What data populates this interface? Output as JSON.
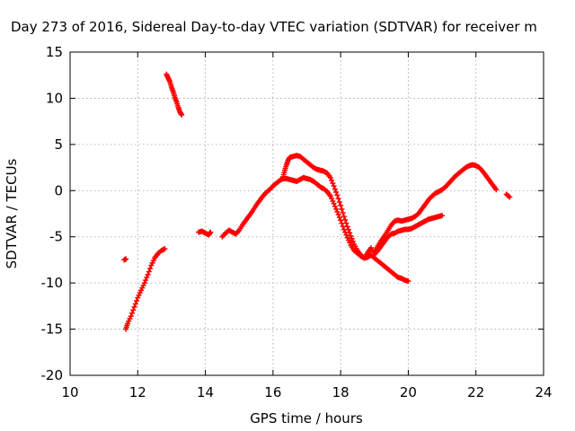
{
  "chart_data": {
    "type": "scatter",
    "title": "Day 273 of 2016, Sidereal Day-to-day VTEC variation (SDTVAR) for receiver m",
    "xlabel": "GPS time / hours",
    "ylabel": "SDTVAR / TECUs",
    "xlim": [
      10,
      24
    ],
    "ylim": [
      -20,
      15
    ],
    "xticks": [
      10,
      12,
      14,
      16,
      18,
      20,
      22,
      24
    ],
    "yticks": [
      -20,
      -15,
      -10,
      -5,
      0,
      5,
      10,
      15
    ],
    "grid": true,
    "marker": "plus",
    "color": "#ff0000",
    "series": [
      {
        "values": [
          [
            11.6,
            -7.5
          ],
          [
            11.65,
            -7.4
          ]
        ]
      },
      {
        "values": [
          [
            11.65,
            -15.0
          ],
          [
            11.7,
            -14.4
          ],
          [
            11.8,
            -13.6
          ],
          [
            11.9,
            -12.6
          ],
          [
            12.0,
            -11.6
          ],
          [
            12.1,
            -10.8
          ],
          [
            12.2,
            -10.0
          ],
          [
            12.3,
            -9.1
          ],
          [
            12.4,
            -8.1
          ],
          [
            12.5,
            -7.3
          ],
          [
            12.6,
            -6.8
          ],
          [
            12.7,
            -6.5
          ],
          [
            12.8,
            -6.3
          ]
        ]
      },
      {
        "values": [
          [
            12.85,
            12.6
          ],
          [
            12.9,
            12.2
          ],
          [
            12.95,
            11.8
          ],
          [
            13.0,
            11.2
          ],
          [
            13.05,
            10.7
          ],
          [
            13.1,
            10.1
          ],
          [
            13.15,
            9.6
          ],
          [
            13.2,
            9.0
          ],
          [
            13.25,
            8.5
          ],
          [
            13.3,
            8.2
          ]
        ]
      },
      {
        "values": [
          [
            13.8,
            -4.5
          ],
          [
            13.9,
            -4.4
          ],
          [
            14.0,
            -4.6
          ],
          [
            14.1,
            -4.8
          ],
          [
            14.15,
            -4.5
          ]
        ]
      },
      {
        "values": [
          [
            14.5,
            -5.0
          ],
          [
            14.6,
            -4.6
          ],
          [
            14.7,
            -4.3
          ],
          [
            14.8,
            -4.5
          ],
          [
            14.9,
            -4.7
          ],
          [
            15.0,
            -4.3
          ],
          [
            15.1,
            -3.7
          ],
          [
            15.2,
            -3.2
          ],
          [
            15.3,
            -2.7
          ],
          [
            15.4,
            -2.2
          ],
          [
            15.5,
            -1.6
          ],
          [
            15.6,
            -1.1
          ],
          [
            15.7,
            -0.6
          ],
          [
            15.8,
            -0.2
          ],
          [
            15.9,
            0.1
          ],
          [
            16.0,
            0.5
          ],
          [
            16.1,
            0.8
          ],
          [
            16.2,
            1.1
          ],
          [
            16.3,
            1.3
          ],
          [
            16.4,
            1.3
          ],
          [
            16.5,
            1.2
          ],
          [
            16.6,
            1.1
          ],
          [
            16.7,
            1.0
          ],
          [
            16.8,
            1.2
          ],
          [
            16.9,
            1.4
          ],
          [
            17.0,
            1.3
          ],
          [
            17.1,
            1.2
          ],
          [
            17.2,
            1.0
          ],
          [
            17.3,
            0.7
          ],
          [
            17.4,
            0.4
          ],
          [
            17.5,
            0.2
          ],
          [
            17.6,
            -0.1
          ],
          [
            17.7,
            -0.6
          ],
          [
            17.8,
            -1.4
          ],
          [
            17.9,
            -2.3
          ],
          [
            18.0,
            -3.2
          ],
          [
            18.1,
            -4.2
          ],
          [
            18.2,
            -5.1
          ],
          [
            18.3,
            -5.9
          ],
          [
            18.4,
            -6.5
          ],
          [
            18.5,
            -6.8
          ],
          [
            18.6,
            -7.1
          ],
          [
            18.7,
            -7.3
          ],
          [
            18.8,
            -7.2
          ],
          [
            18.9,
            -7.0
          ],
          [
            19.0,
            -7.3
          ],
          [
            19.1,
            -7.6
          ],
          [
            19.2,
            -7.9
          ],
          [
            19.3,
            -8.2
          ],
          [
            19.4,
            -8.5
          ],
          [
            19.5,
            -8.8
          ],
          [
            19.6,
            -9.1
          ],
          [
            19.7,
            -9.4
          ],
          [
            19.8,
            -9.5
          ],
          [
            19.9,
            -9.7
          ],
          [
            20.0,
            -9.8
          ]
        ]
      },
      {
        "values": [
          [
            16.3,
            1.5
          ],
          [
            16.35,
            2.2
          ],
          [
            16.4,
            2.8
          ],
          [
            16.45,
            3.3
          ],
          [
            16.5,
            3.6
          ],
          [
            16.6,
            3.7
          ],
          [
            16.7,
            3.8
          ],
          [
            16.8,
            3.7
          ],
          [
            16.9,
            3.4
          ],
          [
            17.0,
            3.1
          ],
          [
            17.1,
            2.8
          ],
          [
            17.2,
            2.5
          ],
          [
            17.3,
            2.3
          ],
          [
            17.4,
            2.2
          ],
          [
            17.5,
            2.1
          ],
          [
            17.6,
            1.9
          ],
          [
            17.7,
            1.4
          ],
          [
            17.8,
            0.5
          ],
          [
            17.9,
            -0.5
          ],
          [
            18.0,
            -1.6
          ],
          [
            18.1,
            -2.8
          ],
          [
            18.2,
            -3.9
          ],
          [
            18.3,
            -4.9
          ],
          [
            18.4,
            -5.8
          ],
          [
            18.5,
            -6.5
          ],
          [
            18.6,
            -7.0
          ],
          [
            18.7,
            -7.3
          ],
          [
            18.8,
            -6.7
          ],
          [
            18.9,
            -6.2
          ],
          [
            19.0,
            -6.9
          ],
          [
            19.1,
            -6.5
          ],
          [
            19.2,
            -6.0
          ],
          [
            19.3,
            -5.5
          ],
          [
            19.4,
            -5.0
          ],
          [
            19.5,
            -4.7
          ],
          [
            19.6,
            -4.6
          ],
          [
            19.7,
            -4.4
          ],
          [
            19.8,
            -4.3
          ],
          [
            19.9,
            -4.2
          ],
          [
            20.0,
            -4.2
          ],
          [
            20.1,
            -4.1
          ],
          [
            20.2,
            -3.9
          ],
          [
            20.3,
            -3.7
          ],
          [
            20.4,
            -3.5
          ],
          [
            20.5,
            -3.3
          ],
          [
            20.6,
            -3.1
          ],
          [
            20.7,
            -3.0
          ],
          [
            20.8,
            -2.9
          ],
          [
            20.9,
            -2.8
          ],
          [
            21.0,
            -2.7
          ]
        ]
      },
      {
        "values": [
          [
            19.0,
            -6.6
          ],
          [
            19.1,
            -6.0
          ],
          [
            19.2,
            -5.4
          ],
          [
            19.3,
            -4.9
          ],
          [
            19.4,
            -4.3
          ],
          [
            19.5,
            -3.7
          ],
          [
            19.6,
            -3.3
          ],
          [
            19.7,
            -3.2
          ],
          [
            19.8,
            -3.3
          ],
          [
            19.9,
            -3.2
          ],
          [
            20.0,
            -3.1
          ],
          [
            20.1,
            -3.0
          ],
          [
            20.2,
            -2.8
          ],
          [
            20.3,
            -2.5
          ],
          [
            20.4,
            -2.0
          ],
          [
            20.5,
            -1.5
          ],
          [
            20.6,
            -1.0
          ],
          [
            20.7,
            -0.6
          ],
          [
            20.8,
            -0.3
          ],
          [
            20.9,
            -0.1
          ],
          [
            21.0,
            0.1
          ],
          [
            21.1,
            0.4
          ],
          [
            21.2,
            0.8
          ],
          [
            21.3,
            1.2
          ],
          [
            21.4,
            1.6
          ],
          [
            21.5,
            1.9
          ],
          [
            21.6,
            2.2
          ],
          [
            21.7,
            2.5
          ],
          [
            21.8,
            2.7
          ],
          [
            21.9,
            2.8
          ],
          [
            22.0,
            2.7
          ],
          [
            22.1,
            2.5
          ],
          [
            22.2,
            2.1
          ],
          [
            22.3,
            1.6
          ],
          [
            22.4,
            1.1
          ],
          [
            22.5,
            0.6
          ],
          [
            22.6,
            0.1
          ]
        ]
      },
      {
        "values": [
          [
            22.9,
            -0.4
          ],
          [
            23.0,
            -0.7
          ]
        ]
      }
    ]
  }
}
